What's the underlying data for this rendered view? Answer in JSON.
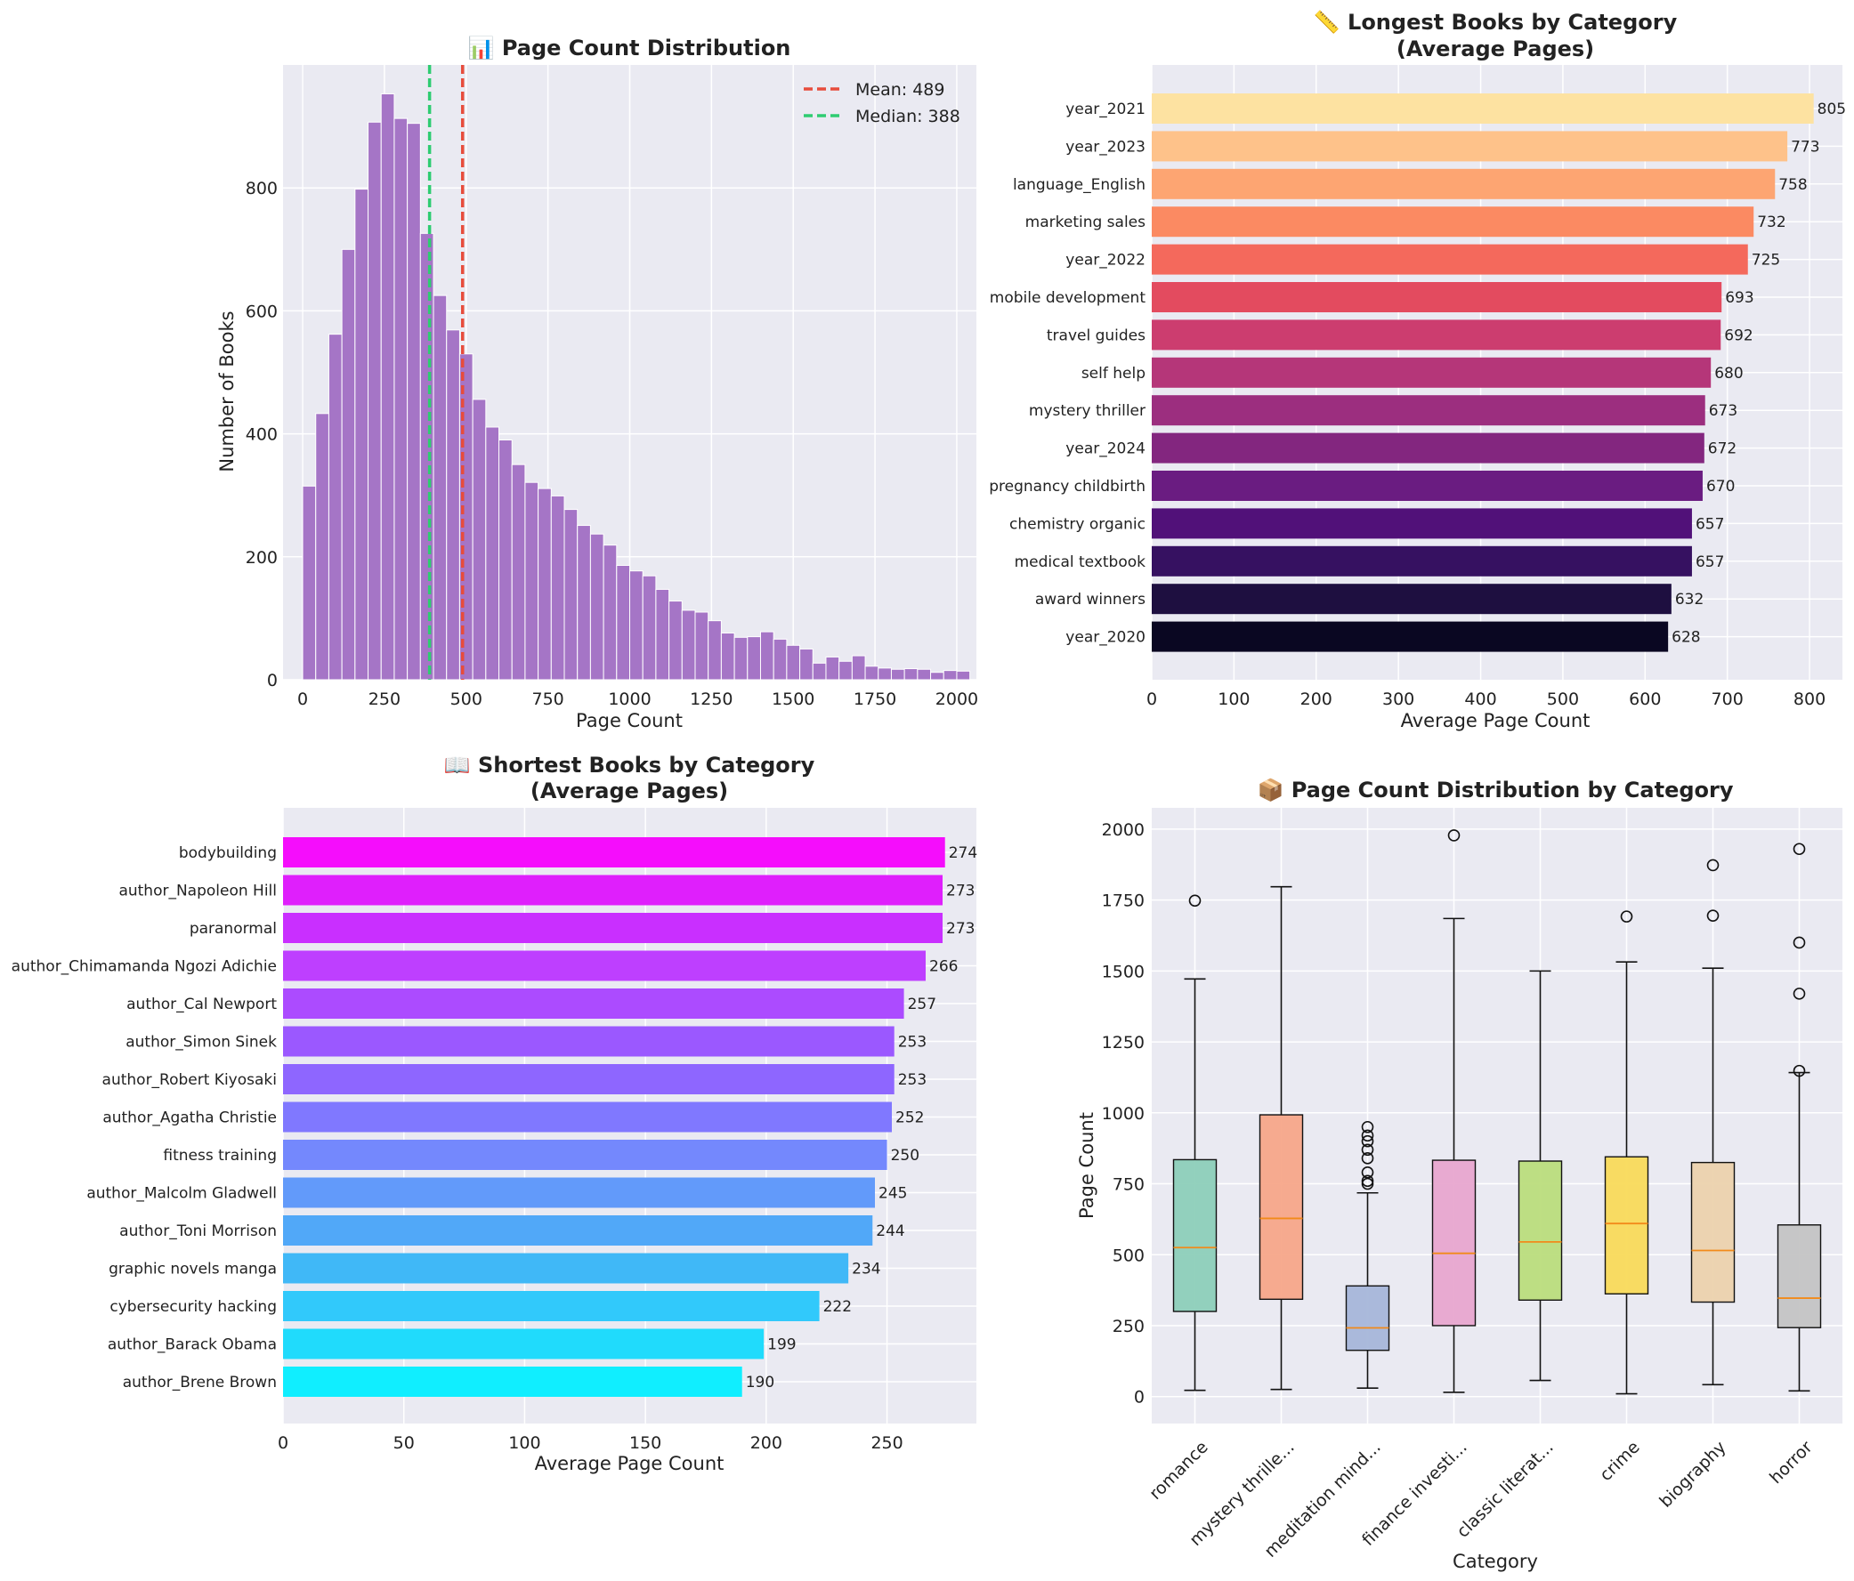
{
  "chart_data": [
    {
      "id": "hist",
      "type": "histogram",
      "title": "📊 Page Count Distribution",
      "xlabel": "Page Count",
      "ylabel": "Number of Books",
      "xlim": [
        -60,
        2060
      ],
      "ylim": [
        0,
        1000
      ],
      "xticks": [
        0,
        250,
        500,
        750,
        1000,
        1250,
        1500,
        1750,
        2000
      ],
      "yticks": [
        0,
        200,
        400,
        600,
        800
      ],
      "bin_start": 0,
      "bin_width": 40,
      "counts": [
        315,
        433,
        562,
        700,
        798,
        907,
        953,
        913,
        905,
        726,
        625,
        569,
        530,
        456,
        411,
        390,
        350,
        321,
        311,
        299,
        277,
        251,
        237,
        219,
        186,
        177,
        169,
        147,
        128,
        113,
        110,
        96,
        76,
        69,
        70,
        78,
        66,
        56,
        50,
        27,
        37,
        30,
        39,
        22,
        19,
        17,
        18,
        17,
        12,
        15,
        14
      ],
      "bar_color": "#a575c6",
      "lines": [
        {
          "label": "Mean: 489",
          "value": 489,
          "color": "#e74c3c"
        },
        {
          "label": "Median: 388",
          "value": 388,
          "color": "#2ecc71"
        }
      ],
      "legend_position": "top-right"
    },
    {
      "id": "longest",
      "type": "barh",
      "title": "📏 Longest Books by Category",
      "subtitle": "(Average Pages)",
      "xlabel": "Average Page Count",
      "xlim": [
        0,
        840
      ],
      "xticks": [
        0,
        100,
        200,
        300,
        400,
        500,
        600,
        700,
        800
      ],
      "categories": [
        "year_2021",
        "year_2023",
        "language_English",
        "marketing sales",
        "year_2022",
        "mobile development",
        "travel guides",
        "self help",
        "mystery thriller",
        "year_2024",
        "pregnancy childbirth",
        "chemistry organic",
        "medical textbook",
        "award winners",
        "year_2020"
      ],
      "values": [
        805,
        773,
        758,
        732,
        725,
        693,
        692,
        680,
        673,
        672,
        670,
        657,
        657,
        632,
        628
      ],
      "colors": [
        "#fde2a1",
        "#fec28a",
        "#fda572",
        "#fb8a62",
        "#f4695c",
        "#e34b5f",
        "#cc3d6f",
        "#b53679",
        "#9c2e7f",
        "#83267f",
        "#6a1c81",
        "#511179",
        "#361161",
        "#1e0f40",
        "#0a0722"
      ]
    },
    {
      "id": "shortest",
      "type": "barh",
      "title": "📖 Shortest Books by Category",
      "subtitle": "(Average Pages)",
      "xlabel": "Average Page Count",
      "xlim": [
        0,
        287
      ],
      "xticks": [
        0,
        50,
        100,
        150,
        200,
        250
      ],
      "categories": [
        "bodybuilding",
        "author_Napoleon Hill",
        "paranormal",
        "author_Chimamanda Ngozi Adichie",
        "author_Cal Newport",
        "author_Simon Sinek",
        "author_Robert Kiyosaki",
        "author_Agatha Christie",
        "fitness training",
        "author_Malcolm Gladwell",
        "author_Toni Morrison",
        "graphic novels manga",
        "cybersecurity hacking",
        "author_Barack Obama",
        "author_Brene Brown"
      ],
      "values": [
        274,
        273,
        273,
        266,
        257,
        253,
        253,
        252,
        250,
        245,
        244,
        234,
        222,
        199,
        190
      ],
      "colors": [
        "#f50dfc",
        "#df1ffc",
        "#c92fff",
        "#be3fff",
        "#ac4bff",
        "#9b58ff",
        "#8e66ff",
        "#8078ff",
        "#7488fd",
        "#629afa",
        "#51a8f8",
        "#40b8f7",
        "#31c9fb",
        "#20dbfc",
        "#10eeff"
      ]
    },
    {
      "id": "boxplot",
      "type": "boxplot",
      "title": "📦 Page Count Distribution by Category",
      "xlabel": "Category",
      "ylabel": "Page Count",
      "ylim": [
        -95,
        2075
      ],
      "yticks": [
        0,
        250,
        500,
        750,
        1000,
        1250,
        1500,
        1750,
        2000
      ],
      "categories": [
        "romance",
        "mystery thrille...",
        "meditation mind...",
        "finance investi...",
        "classic literat...",
        "crime",
        "biography",
        "horror"
      ],
      "boxes": [
        {
          "whislo": 22,
          "q1": 300,
          "med": 525,
          "q3": 835,
          "whishi": 1472,
          "fliers": [
            1748
          ],
          "color": "#8dcfb9"
        },
        {
          "whislo": 25,
          "q1": 343,
          "med": 628,
          "q3": 993,
          "whishi": 1797,
          "fliers": [],
          "color": "#f7a689"
        },
        {
          "whislo": 30,
          "q1": 163,
          "med": 242,
          "q3": 390,
          "whishi": 718,
          "fliers": [
            750,
            760,
            790,
            840,
            870,
            900,
            920,
            950
          ],
          "color": "#a7b6d9"
        },
        {
          "whislo": 15,
          "q1": 250,
          "med": 505,
          "q3": 833,
          "whishi": 1685,
          "fliers": [
            1978
          ],
          "color": "#e8a6cf"
        },
        {
          "whislo": 57,
          "q1": 340,
          "med": 545,
          "q3": 830,
          "whishi": 1500,
          "fliers": [],
          "color": "#badd7c"
        },
        {
          "whislo": 10,
          "q1": 362,
          "med": 610,
          "q3": 845,
          "whishi": 1532,
          "fliers": [
            1692
          ],
          "color": "#f9da5a"
        },
        {
          "whislo": 42,
          "q1": 333,
          "med": 515,
          "q3": 825,
          "whishi": 1510,
          "fliers": [
            1695,
            1873
          ],
          "color": "#ecd2ad"
        },
        {
          "whislo": 20,
          "q1": 243,
          "med": 347,
          "q3": 605,
          "whishi": 1142,
          "fliers": [
            1148,
            1420,
            1600,
            1930
          ],
          "color": "#c4c4c4"
        }
      ]
    }
  ]
}
